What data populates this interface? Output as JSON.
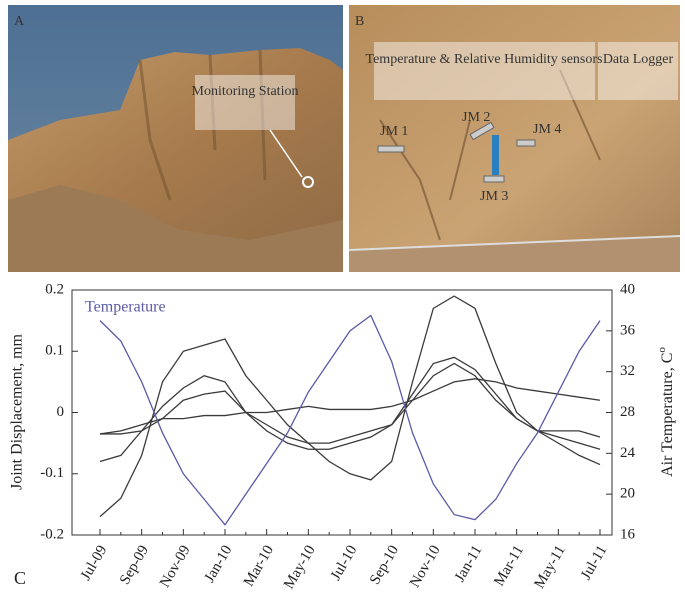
{
  "photos": {
    "panel_a": {
      "label": "A",
      "station_label": "Monitoring Station"
    },
    "panel_b": {
      "label": "B",
      "sensor_label": "Temperature & Relative Humidity sensors",
      "logger_label": "Data Logger",
      "joints": [
        "JM 1",
        "JM 2",
        "JM 3",
        "JM 4"
      ]
    }
  },
  "chart_data": {
    "type": "line",
    "panel_label": "C",
    "ylabel": "Joint Displacement, mm",
    "y2label": "Air Temperature, C",
    "y2label_superscript": "o",
    "categories": [
      "Jul-09",
      null,
      "Sep-09",
      null,
      "Nov-09",
      null,
      "Jan-10",
      null,
      "Mar-10",
      null,
      "May-10",
      null,
      "Jul-10",
      null,
      "Sep-10",
      null,
      "Nov-10",
      null,
      "Jan-11",
      null,
      "Mar-11",
      null,
      "May-11",
      null,
      "Jul-11"
    ],
    "ylim": [
      -0.2,
      0.2
    ],
    "yticks": [
      -0.2,
      -0.1,
      0,
      0.1,
      0.2
    ],
    "y2lim": [
      16,
      40
    ],
    "y2ticks": [
      16,
      20,
      24,
      28,
      32,
      36,
      40
    ],
    "series": [
      {
        "color": "#3a3a3a",
        "values": [
          -0.17,
          -0.14,
          -0.07,
          0.05,
          0.1,
          0.11,
          0.12,
          0.06,
          0.02,
          -0.02,
          -0.05,
          -0.08,
          -0.1,
          -0.11,
          -0.08,
          0.05,
          0.17,
          0.19,
          0.17,
          0.08,
          0.0,
          -0.03,
          -0.05,
          -0.07,
          -0.085
        ]
      },
      {
        "color": "#3a3a3a",
        "values": [
          -0.08,
          -0.07,
          -0.03,
          0.01,
          0.04,
          0.06,
          0.05,
          0.0,
          -0.03,
          -0.05,
          -0.06,
          -0.06,
          -0.05,
          -0.04,
          -0.02,
          0.03,
          0.08,
          0.09,
          0.07,
          0.03,
          -0.01,
          -0.03,
          -0.04,
          -0.05,
          -0.06
        ]
      },
      {
        "color": "#3a3a3a",
        "values": [
          -0.035,
          -0.035,
          -0.03,
          -0.01,
          0.02,
          0.03,
          0.035,
          0.0,
          -0.02,
          -0.04,
          -0.05,
          -0.05,
          -0.04,
          -0.03,
          -0.02,
          0.02,
          0.06,
          0.08,
          0.06,
          0.02,
          -0.01,
          -0.03,
          -0.03,
          -0.03,
          -0.04
        ]
      },
      {
        "color": "#3a3a3a",
        "values": [
          -0.035,
          -0.03,
          -0.02,
          -0.01,
          -0.01,
          -0.005,
          -0.005,
          0.0,
          0.0,
          0.005,
          0.01,
          0.005,
          0.005,
          0.005,
          0.01,
          0.02,
          0.035,
          0.05,
          0.055,
          0.05,
          0.04,
          0.035,
          0.03,
          0.025,
          0.02
        ]
      },
      {
        "name": "Temperature",
        "color": "#5a5aa8",
        "axis": "y2",
        "values": [
          37,
          35,
          31,
          26,
          22,
          19.5,
          17,
          20,
          23,
          26,
          30,
          33,
          36,
          37.5,
          33,
          26,
          21,
          18,
          17.5,
          19.5,
          23,
          26,
          30,
          34,
          37
        ]
      }
    ]
  }
}
